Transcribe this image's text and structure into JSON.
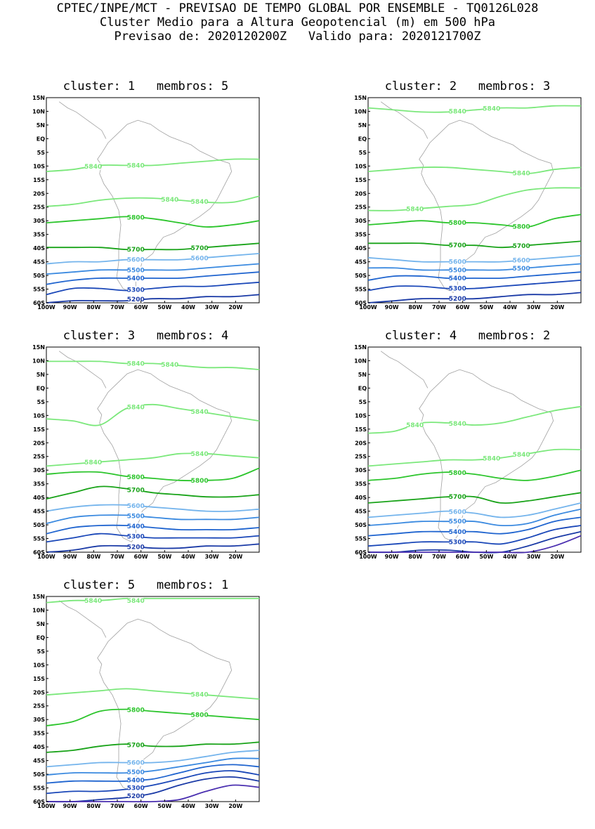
{
  "header": {
    "line1": "CPTEC/INPE/MCT - PREVISAO DE TEMPO GLOBAL POR ENSEMBLE - TQ0126L028",
    "line2": "Cluster Medio para a Altura Geopotencial (m) em 500 hPa",
    "line3": "Previsao de: 2020120200Z   Valido para: 2020121700Z"
  },
  "axes": {
    "lat_ticks": [
      "15N",
      "10N",
      "5N",
      "EQ",
      "5S",
      "10S",
      "15S",
      "20S",
      "25S",
      "30S",
      "35S",
      "40S",
      "45S",
      "50S",
      "55S",
      "60S"
    ],
    "lon_ticks": [
      "100W",
      "90W",
      "80W",
      "70W",
      "60W",
      "50W",
      "40W",
      "30W",
      "20W"
    ]
  },
  "colors": {
    "c5840": "#7be87b",
    "c5800": "#2cc52c",
    "c5700": "#19a319",
    "c5600": "#74b4ec",
    "c5500": "#3b8ae0",
    "c5400": "#1f64cf",
    "c5300": "#1a47b8",
    "c5200": "#1a3aa6",
    "c5100": "#4a2fb0",
    "coast": "#a0a0a0"
  },
  "panels": [
    {
      "title": "cluster: 1   membros: 5",
      "labels": [
        "5840",
        "5840",
        "5840",
        "5840",
        "5800",
        "5700",
        "5700",
        "5600",
        "5600",
        "5500",
        "5400",
        "5300",
        "5200"
      ]
    },
    {
      "title": "cluster: 2   membros: 3",
      "labels": [
        "5840",
        "5840",
        "5840",
        "5840",
        "5800",
        "5800",
        "5700",
        "5700",
        "5600",
        "5600",
        "5500",
        "5500",
        "5400",
        "5300",
        "5200"
      ]
    },
    {
      "title": "cluster: 3   membros: 4",
      "labels": [
        "5840",
        "5840",
        "5840",
        "5840",
        "5840",
        "5840",
        "5800",
        "5800",
        "5700",
        "5600",
        "5500",
        "5400",
        "5300",
        "5200"
      ]
    },
    {
      "title": "cluster: 4   membros: 2",
      "labels": [
        "5840",
        "5840",
        "5840",
        "5840",
        "5800",
        "5700",
        "5600",
        "5500",
        "5400",
        "5300"
      ]
    },
    {
      "title": "cluster: 5   membros: 1",
      "labels": [
        "5840",
        "5840",
        "5840",
        "5800",
        "5800",
        "5700",
        "5600",
        "5500",
        "5400",
        "5300",
        "5200"
      ]
    }
  ]
}
